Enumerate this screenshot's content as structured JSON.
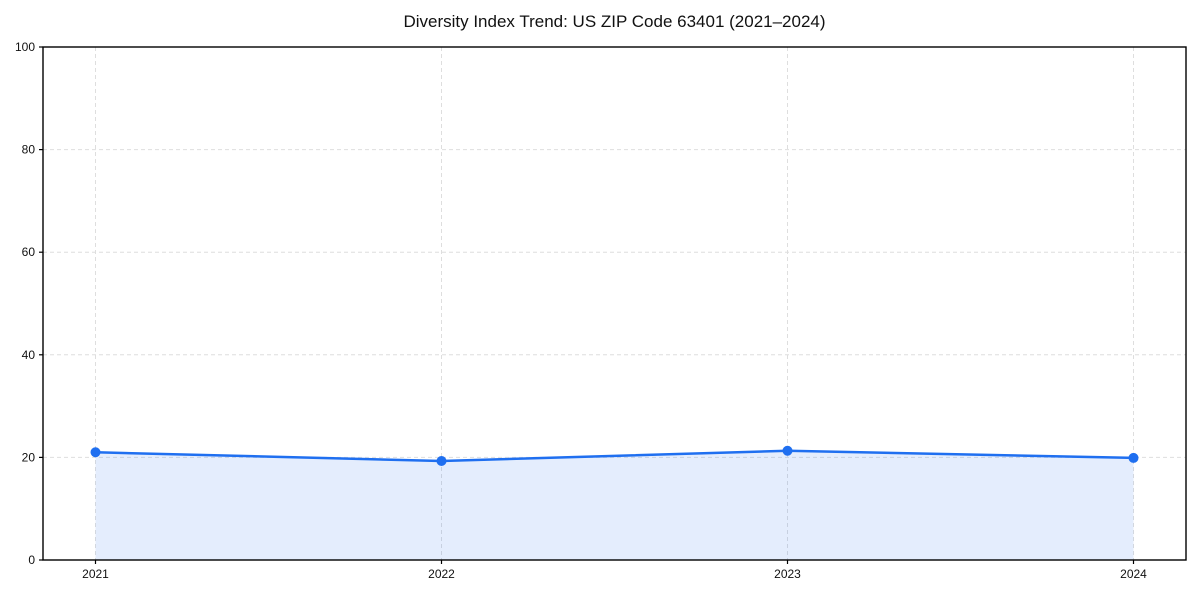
{
  "figure": {
    "background": "#ffffff"
  },
  "chart_data": {
    "type": "area",
    "title": "Diversity Index Trend: US ZIP Code 63401 (2021–2024)",
    "categories": [
      "2021",
      "2022",
      "2023",
      "2024"
    ],
    "series": [
      {
        "name": "Diversity Index",
        "values": [
          21.0,
          19.3,
          21.3,
          19.9
        ]
      }
    ],
    "xlabel": "",
    "ylabel": "",
    "ylim": [
      0,
      100
    ],
    "yticks": [
      0,
      20,
      40,
      60,
      80,
      100
    ],
    "grid": true,
    "grid_style": "dashed",
    "legend_position": "none",
    "marker": "circle",
    "colors": {
      "line": "#1f6ff0",
      "marker": "#1f6ff0",
      "fill_rgba": "rgba(31,111,240,0.12)",
      "grid": "#dedede",
      "spine": "#000000",
      "tick_text": "#111111",
      "background": "#ffffff"
    }
  }
}
